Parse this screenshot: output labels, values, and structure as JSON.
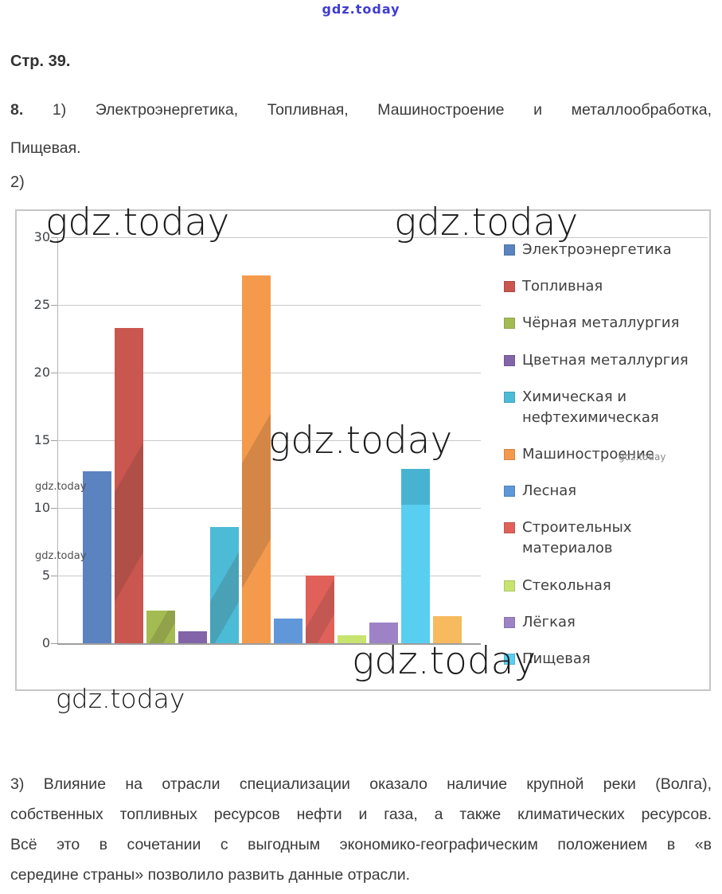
{
  "header": {
    "watermark_link": "gdz.today"
  },
  "page": {
    "page_label": "Стр. 39.",
    "part2_label": "2)"
  },
  "task8": {
    "number": "8.",
    "answer1_line1": "1) Электроэнергетика, Топливная, Машиностроение и металлообработка,",
    "answer1_line2": "Пищевая."
  },
  "answer3": {
    "lines": [
      "3) Влияние на отрасли специализации оказало наличие крупной реки (Волга),",
      "собственных топливных ресурсов нефти и газа, а также климатических ресурсов.",
      "Всё это в сочетании с выгодным экономико-географическим положением в «в",
      "середине страны» позволило развить данные отрасли."
    ]
  },
  "watermarks": {
    "large_text": "gdz.today",
    "small_text": "gdz.today"
  },
  "chart_data": {
    "type": "bar",
    "title": "",
    "xlabel": "",
    "ylabel": "",
    "ylim": [
      0,
      30
    ],
    "y_ticks": [
      30,
      25,
      20,
      15,
      10,
      5,
      0
    ],
    "grid": true,
    "legend_position": "right",
    "categories": [
      "Электроэнергетика",
      "Топливная",
      "Чёрная металлургия",
      "Цветная металлургия",
      "Химическая и нефтехимическая",
      "Машиностроение",
      "Лесная",
      "Строительных материалов",
      "Стекольная",
      "Лёгкая",
      "Пищевая",
      ""
    ],
    "values": [
      12.7,
      23.3,
      2.4,
      0.9,
      8.6,
      27.2,
      1.8,
      5.0,
      0.6,
      1.5,
      12.9,
      2.0
    ],
    "colors": [
      "#5A83C0",
      "#C9564F",
      "#A4BB52",
      "#8264A9",
      "#4CBBD6",
      "#F49A4C",
      "#5F97D8",
      "#E0615A",
      "#C7E46F",
      "#9D83C6",
      "#58CFF0",
      "#F7BA5E"
    ],
    "legend": [
      {
        "label_lines": [
          "Электроэнергетика"
        ],
        "color": "#5A83C0"
      },
      {
        "label_lines": [
          "Топливная"
        ],
        "color": "#C9564F"
      },
      {
        "label_lines": [
          "Чёрная металлургия"
        ],
        "color": "#A4BB52"
      },
      {
        "label_lines": [
          "Цветная металлургия"
        ],
        "color": "#8264A9"
      },
      {
        "label_lines": [
          "Химическая и",
          "нефтехимическая"
        ],
        "color": "#4CBBD6"
      },
      {
        "label_lines": [
          "Машиностроение"
        ],
        "color": "#F49A4C"
      },
      {
        "label_lines": [
          "Лесная"
        ],
        "color": "#5F97D8"
      },
      {
        "label_lines": [
          "Строительных",
          "материалов"
        ],
        "color": "#E0615A"
      },
      {
        "label_lines": [
          "Стекольная"
        ],
        "color": "#C7E46F"
      },
      {
        "label_lines": [
          "Лёгкая"
        ],
        "color": "#9D83C6"
      },
      {
        "label_lines": [
          "Пищевая"
        ],
        "color": "#58CFF0"
      }
    ]
  }
}
